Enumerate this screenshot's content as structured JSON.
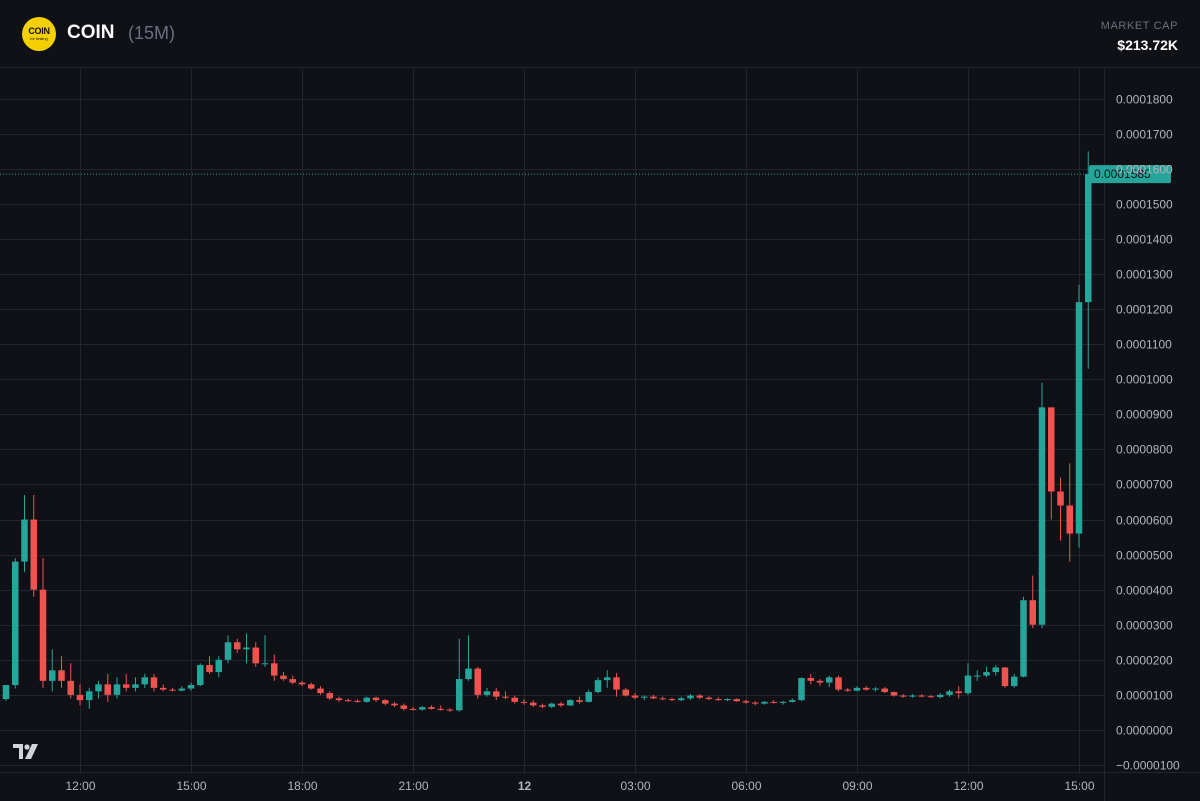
{
  "header": {
    "logo_text": "COIN",
    "logo_sub": "for testing",
    "symbol": "COIN",
    "interval": "(15M)",
    "market_cap_label": "MARKET CAP",
    "market_cap_value": "$213.72K"
  },
  "colors": {
    "background": "#0f1117",
    "grid": "#23262f",
    "up": "#26a69a",
    "down": "#ef5350",
    "logo_bg": "#f5d000"
  },
  "icons": {
    "watermark": "tradingview-icon"
  },
  "chart_data": {
    "type": "candlestick",
    "title": "",
    "xlabel": "",
    "ylabel": "",
    "grid": true,
    "y_axis_position": "right",
    "ylim": [
      -1.2e-05,
      0.0001885
    ],
    "y_ticks": [
      {
        "value": 0.00018,
        "label": "0.0001800"
      },
      {
        "value": 0.00017,
        "label": "0.0001700"
      },
      {
        "value": 0.00016,
        "label": "0.0001600"
      },
      {
        "value": 0.00015,
        "label": "0.0001500"
      },
      {
        "value": 0.00014,
        "label": "0.0001400"
      },
      {
        "value": 0.00013,
        "label": "0.0001300"
      },
      {
        "value": 0.00012,
        "label": "0.0001200"
      },
      {
        "value": 0.00011,
        "label": "0.0001100"
      },
      {
        "value": 0.0001,
        "label": "0.0001000"
      },
      {
        "value": 9e-05,
        "label": "0.0000900"
      },
      {
        "value": 8e-05,
        "label": "0.0000800"
      },
      {
        "value": 7e-05,
        "label": "0.0000700"
      },
      {
        "value": 6e-05,
        "label": "0.0000600"
      },
      {
        "value": 5e-05,
        "label": "0.0000500"
      },
      {
        "value": 4e-05,
        "label": "0.0000400"
      },
      {
        "value": 3e-05,
        "label": "0.0000300"
      },
      {
        "value": 2e-05,
        "label": "0.0000200"
      },
      {
        "value": 1e-05,
        "label": "0.0000100"
      },
      {
        "value": 0.0,
        "label": "0.0000000"
      },
      {
        "value": -1e-05,
        "label": "−0.0000100"
      }
    ],
    "x_ticks": [
      {
        "index": 8,
        "label": "12:00",
        "bold": false
      },
      {
        "index": 20,
        "label": "15:00",
        "bold": false
      },
      {
        "index": 32,
        "label": "18:00",
        "bold": false
      },
      {
        "index": 44,
        "label": "21:00",
        "bold": false
      },
      {
        "index": 56,
        "label": "12",
        "bold": true
      },
      {
        "index": 68,
        "label": "03:00",
        "bold": false
      },
      {
        "index": 80,
        "label": "06:00",
        "bold": false
      },
      {
        "index": 92,
        "label": "09:00",
        "bold": false
      },
      {
        "index": 104,
        "label": "12:00",
        "bold": false
      },
      {
        "index": 116,
        "label": "15:00",
        "bold": false
      }
    ],
    "last_price": {
      "value": 0.0001585,
      "label": "0.0001585"
    },
    "candles": [
      {
        "o": 8.8e-06,
        "h": 1.28e-05,
        "l": 8.3e-06,
        "c": 1.28e-05
      },
      {
        "o": 1.28e-05,
        "h": 4.9e-05,
        "l": 1.18e-05,
        "c": 4.8e-05
      },
      {
        "o": 4.8e-05,
        "h": 6.7e-05,
        "l": 4.5e-05,
        "c": 6e-05
      },
      {
        "o": 6e-05,
        "h": 6.7e-05,
        "l": 3.8e-05,
        "c": 4e-05
      },
      {
        "o": 4e-05,
        "h": 4.9e-05,
        "l": 1.2e-05,
        "c": 1.4e-05
      },
      {
        "o": 1.4e-05,
        "h": 2.3e-05,
        "l": 1.1e-05,
        "c": 1.7e-05
      },
      {
        "o": 1.7e-05,
        "h": 2.1e-05,
        "l": 1.2e-05,
        "c": 1.4e-05
      },
      {
        "o": 1.4e-05,
        "h": 1.9e-05,
        "l": 9e-06,
        "c": 1e-05
      },
      {
        "o": 1e-05,
        "h": 1.3e-05,
        "l": 7e-06,
        "c": 8.5e-06
      },
      {
        "o": 8.5e-06,
        "h": 1.2e-05,
        "l": 6e-06,
        "c": 1.1e-05
      },
      {
        "o": 1.1e-05,
        "h": 1.4e-05,
        "l": 9e-06,
        "c": 1.3e-05
      },
      {
        "o": 1.3e-05,
        "h": 1.6e-05,
        "l": 8e-06,
        "c": 1e-05
      },
      {
        "o": 1e-05,
        "h": 1.5e-05,
        "l": 9e-06,
        "c": 1.3e-05
      },
      {
        "o": 1.3e-05,
        "h": 1.6e-05,
        "l": 1.1e-05,
        "c": 1.2e-05
      },
      {
        "o": 1.2e-05,
        "h": 1.5e-05,
        "l": 1.1e-05,
        "c": 1.3e-05
      },
      {
        "o": 1.3e-05,
        "h": 1.6e-05,
        "l": 1.2e-05,
        "c": 1.5e-05
      },
      {
        "o": 1.5e-05,
        "h": 1.6e-05,
        "l": 1.1e-05,
        "c": 1.2e-05
      },
      {
        "o": 1.2e-05,
        "h": 1.3e-05,
        "l": 1.1e-05,
        "c": 1.15e-05
      },
      {
        "o": 1.15e-05,
        "h": 1.2e-05,
        "l": 1.1e-05,
        "c": 1.12e-05
      },
      {
        "o": 1.12e-05,
        "h": 1.25e-05,
        "l": 1.1e-05,
        "c": 1.18e-05
      },
      {
        "o": 1.18e-05,
        "h": 1.35e-05,
        "l": 1.12e-05,
        "c": 1.28e-05
      },
      {
        "o": 1.28e-05,
        "h": 1.9e-05,
        "l": 1.25e-05,
        "c": 1.85e-05
      },
      {
        "o": 1.85e-05,
        "h": 2.1e-05,
        "l": 1.6e-05,
        "c": 1.65e-05
      },
      {
        "o": 1.65e-05,
        "h": 2.1e-05,
        "l": 1.5e-05,
        "c": 2e-05
      },
      {
        "o": 2e-05,
        "h": 2.7e-05,
        "l": 1.9e-05,
        "c": 2.5e-05
      },
      {
        "o": 2.5e-05,
        "h": 2.6e-05,
        "l": 2.2e-05,
        "c": 2.3e-05
      },
      {
        "o": 2.3e-05,
        "h": 2.75e-05,
        "l": 1.9e-05,
        "c": 2.35e-05
      },
      {
        "o": 2.35e-05,
        "h": 2.5e-05,
        "l": 1.8e-05,
        "c": 1.9e-05
      },
      {
        "o": 1.9e-05,
        "h": 2.7e-05,
        "l": 1.8e-05,
        "c": 1.9e-05
      },
      {
        "o": 1.9e-05,
        "h": 2.15e-05,
        "l": 1.4e-05,
        "c": 1.55e-05
      },
      {
        "o": 1.55e-05,
        "h": 1.65e-05,
        "l": 1.4e-05,
        "c": 1.45e-05
      },
      {
        "o": 1.45e-05,
        "h": 1.55e-05,
        "l": 1.3e-05,
        "c": 1.35e-05
      },
      {
        "o": 1.35e-05,
        "h": 1.4e-05,
        "l": 1.25e-05,
        "c": 1.3e-05
      },
      {
        "o": 1.3e-05,
        "h": 1.35e-05,
        "l": 1.15e-05,
        "c": 1.18e-05
      },
      {
        "o": 1.18e-05,
        "h": 1.25e-05,
        "l": 1e-05,
        "c": 1.05e-05
      },
      {
        "o": 1.05e-05,
        "h": 1.1e-05,
        "l": 8.5e-06,
        "c": 9e-06
      },
      {
        "o": 9e-06,
        "h": 9.5e-06,
        "l": 8e-06,
        "c": 8.5e-06
      },
      {
        "o": 8.5e-06,
        "h": 9e-06,
        "l": 8e-06,
        "c": 8.3e-06
      },
      {
        "o": 8.3e-06,
        "h": 8.7e-06,
        "l": 7.8e-06,
        "c": 8e-06
      },
      {
        "o": 8e-06,
        "h": 9.5e-06,
        "l": 7.8e-06,
        "c": 9.2e-06
      },
      {
        "o": 9.2e-06,
        "h": 9.5e-06,
        "l": 8e-06,
        "c": 8.5e-06
      },
      {
        "o": 8.5e-06,
        "h": 8.8e-06,
        "l": 7e-06,
        "c": 7.5e-06
      },
      {
        "o": 7.5e-06,
        "h": 8e-06,
        "l": 6.5e-06,
        "c": 7e-06
      },
      {
        "o": 7e-06,
        "h": 7.5e-06,
        "l": 5.5e-06,
        "c": 6e-06
      },
      {
        "o": 6e-06,
        "h": 6.5e-06,
        "l": 5.5e-06,
        "c": 5.8e-06
      },
      {
        "o": 5.8e-06,
        "h": 6.8e-06,
        "l": 5.5e-06,
        "c": 6.5e-06
      },
      {
        "o": 6.5e-06,
        "h": 7e-06,
        "l": 5.8e-06,
        "c": 6e-06
      },
      {
        "o": 6e-06,
        "h": 7e-06,
        "l": 5.5e-06,
        "c": 5.8e-06
      },
      {
        "o": 5.8e-06,
        "h": 6.2e-06,
        "l": 5.2e-06,
        "c": 5.6e-06
      },
      {
        "o": 5.6e-06,
        "h": 2.6e-05,
        "l": 5.2e-06,
        "c": 1.45e-05
      },
      {
        "o": 1.45e-05,
        "h": 2.7e-05,
        "l": 1.4e-05,
        "c": 1.75e-05
      },
      {
        "o": 1.75e-05,
        "h": 1.8e-05,
        "l": 9e-06,
        "c": 1e-05
      },
      {
        "o": 1e-05,
        "h": 1.2e-05,
        "l": 9.5e-06,
        "c": 1.1e-05
      },
      {
        "o": 1.1e-05,
        "h": 1.2e-05,
        "l": 8.5e-06,
        "c": 9.5e-06
      },
      {
        "o": 9.5e-06,
        "h": 1.1e-05,
        "l": 8.8e-06,
        "c": 9.2e-06
      },
      {
        "o": 9.2e-06,
        "h": 9.8e-06,
        "l": 7.5e-06,
        "c": 8e-06
      },
      {
        "o": 8e-06,
        "h": 8.8e-06,
        "l": 7.2e-06,
        "c": 7.8e-06
      },
      {
        "o": 7.8e-06,
        "h": 8.5e-06,
        "l": 6.5e-06,
        "c": 7e-06
      },
      {
        "o": 7e-06,
        "h": 7.5e-06,
        "l": 6.2e-06,
        "c": 6.6e-06
      },
      {
        "o": 6.6e-06,
        "h": 7.8e-06,
        "l": 6.2e-06,
        "c": 7.5e-06
      },
      {
        "o": 7.5e-06,
        "h": 8e-06,
        "l": 6.5e-06,
        "c": 7e-06
      },
      {
        "o": 7e-06,
        "h": 8.8e-06,
        "l": 6.8e-06,
        "c": 8.5e-06
      },
      {
        "o": 8.5e-06,
        "h": 9.5e-06,
        "l": 7.5e-06,
        "c": 8e-06
      },
      {
        "o": 8e-06,
        "h": 1.15e-05,
        "l": 7.8e-06,
        "c": 1.08e-05
      },
      {
        "o": 1.08e-05,
        "h": 1.5e-05,
        "l": 1.05e-05,
        "c": 1.42e-05
      },
      {
        "o": 1.42e-05,
        "h": 1.7e-05,
        "l": 1.2e-05,
        "c": 1.5e-05
      },
      {
        "o": 1.5e-05,
        "h": 1.62e-05,
        "l": 9.5e-06,
        "c": 1.15e-05
      },
      {
        "o": 1.15e-05,
        "h": 1.2e-05,
        "l": 9.5e-06,
        "c": 9.8e-06
      },
      {
        "o": 9.8e-06,
        "h": 1.05e-05,
        "l": 8.8e-06,
        "c": 9.2e-06
      },
      {
        "o": 9.2e-06,
        "h": 9.8e-06,
        "l": 8.5e-06,
        "c": 9.5e-06
      },
      {
        "o": 9.5e-06,
        "h": 1e-05,
        "l": 8.8e-06,
        "c": 9e-06
      },
      {
        "o": 9e-06,
        "h": 9.5e-06,
        "l": 8.5e-06,
        "c": 8.8e-06
      },
      {
        "o": 8.8e-06,
        "h": 9.2e-06,
        "l": 8.2e-06,
        "c": 8.5e-06
      },
      {
        "o": 8.5e-06,
        "h": 9.5e-06,
        "l": 8.2e-06,
        "c": 9e-06
      },
      {
        "o": 9e-06,
        "h": 1.02e-05,
        "l": 8.5e-06,
        "c": 9.8e-06
      },
      {
        "o": 9.8e-06,
        "h": 1.02e-05,
        "l": 8.8e-06,
        "c": 9.2e-06
      },
      {
        "o": 9.2e-06,
        "h": 9.6e-06,
        "l": 8.5e-06,
        "c": 8.8e-06
      },
      {
        "o": 8.8e-06,
        "h": 9.3e-06,
        "l": 8.3e-06,
        "c": 8.5e-06
      },
      {
        "o": 8.5e-06,
        "h": 9e-06,
        "l": 8.2e-06,
        "c": 8.8e-06
      },
      {
        "o": 8.8e-06,
        "h": 9e-06,
        "l": 8e-06,
        "c": 8.2e-06
      },
      {
        "o": 8.2e-06,
        "h": 8.6e-06,
        "l": 7.5e-06,
        "c": 7.8e-06
      },
      {
        "o": 7.8e-06,
        "h": 8.2e-06,
        "l": 7e-06,
        "c": 7.5e-06
      },
      {
        "o": 7.5e-06,
        "h": 8.2e-06,
        "l": 7.2e-06,
        "c": 8e-06
      },
      {
        "o": 8e-06,
        "h": 8.5e-06,
        "l": 7.5e-06,
        "c": 7.8e-06
      },
      {
        "o": 7.8e-06,
        "h": 8.3e-06,
        "l": 7.2e-06,
        "c": 8e-06
      },
      {
        "o": 8e-06,
        "h": 9e-06,
        "l": 7.8e-06,
        "c": 8.5e-06
      },
      {
        "o": 8.5e-06,
        "h": 1.5e-05,
        "l": 8.2e-06,
        "c": 1.48e-05
      },
      {
        "o": 1.48e-05,
        "h": 1.6e-05,
        "l": 1.3e-05,
        "c": 1.4e-05
      },
      {
        "o": 1.4e-05,
        "h": 1.45e-05,
        "l": 1.25e-05,
        "c": 1.35e-05
      },
      {
        "o": 1.35e-05,
        "h": 1.55e-05,
        "l": 1.22e-05,
        "c": 1.5e-05
      },
      {
        "o": 1.5e-05,
        "h": 1.55e-05,
        "l": 1.1e-05,
        "c": 1.15e-05
      },
      {
        "o": 1.15e-05,
        "h": 1.2e-05,
        "l": 1.08e-05,
        "c": 1.12e-05
      },
      {
        "o": 1.12e-05,
        "h": 1.25e-05,
        "l": 1.1e-05,
        "c": 1.2e-05
      },
      {
        "o": 1.2e-05,
        "h": 1.25e-05,
        "l": 1.12e-05,
        "c": 1.15e-05
      },
      {
        "o": 1.15e-05,
        "h": 1.22e-05,
        "l": 1.1e-05,
        "c": 1.18e-05
      },
      {
        "o": 1.18e-05,
        "h": 1.22e-05,
        "l": 1.05e-05,
        "c": 1.08e-05
      },
      {
        "o": 1.08e-05,
        "h": 1.1e-05,
        "l": 9.5e-06,
        "c": 9.8e-06
      },
      {
        "o": 9.8e-06,
        "h": 1.02e-05,
        "l": 9.2e-06,
        "c": 9.5e-06
      },
      {
        "o": 9.5e-06,
        "h": 1.02e-05,
        "l": 9.2e-06,
        "c": 9.8e-06
      },
      {
        "o": 9.8e-06,
        "h": 1.02e-05,
        "l": 9.3e-06,
        "c": 9.6e-06
      },
      {
        "o": 9.6e-06,
        "h": 9.9e-06,
        "l": 9.2e-06,
        "c": 9.4e-06
      },
      {
        "o": 9.4e-06,
        "h": 1.05e-05,
        "l": 9e-06,
        "c": 1e-05
      },
      {
        "o": 1e-05,
        "h": 1.15e-05,
        "l": 9.5e-06,
        "c": 1.1e-05
      },
      {
        "o": 1.1e-05,
        "h": 1.25e-05,
        "l": 9e-06,
        "c": 1.05e-05
      },
      {
        "o": 1.05e-05,
        "h": 1.9e-05,
        "l": 1e-05,
        "c": 1.55e-05
      },
      {
        "o": 1.55e-05,
        "h": 1.7e-05,
        "l": 1.4e-05,
        "c": 1.55e-05
      },
      {
        "o": 1.55e-05,
        "h": 1.8e-05,
        "l": 1.5e-05,
        "c": 1.65e-05
      },
      {
        "o": 1.65e-05,
        "h": 1.85e-05,
        "l": 1.55e-05,
        "c": 1.78e-05
      },
      {
        "o": 1.78e-05,
        "h": 1.8e-05,
        "l": 1.2e-05,
        "c": 1.25e-05
      },
      {
        "o": 1.25e-05,
        "h": 1.6e-05,
        "l": 1.2e-05,
        "c": 1.52e-05
      },
      {
        "o": 1.52e-05,
        "h": 3.8e-05,
        "l": 1.5e-05,
        "c": 3.7e-05
      },
      {
        "o": 3.7e-05,
        "h": 4.4e-05,
        "l": 2.9e-05,
        "c": 3e-05
      },
      {
        "o": 3e-05,
        "h": 9.9e-05,
        "l": 2.9e-05,
        "c": 9.2e-05
      },
      {
        "o": 9.2e-05,
        "h": 9.2e-05,
        "l": 6e-05,
        "c": 6.8e-05
      },
      {
        "o": 6.8e-05,
        "h": 7.2e-05,
        "l": 5.4e-05,
        "c": 6.4e-05
      },
      {
        "o": 6.4e-05,
        "h": 7.6e-05,
        "l": 4.8e-05,
        "c": 5.6e-05
      },
      {
        "o": 5.6e-05,
        "h": 0.000127,
        "l": 5.2e-05,
        "c": 0.000122
      },
      {
        "o": 0.000122,
        "h": 0.000165,
        "l": 0.000103,
        "c": 0.0001585
      }
    ]
  }
}
